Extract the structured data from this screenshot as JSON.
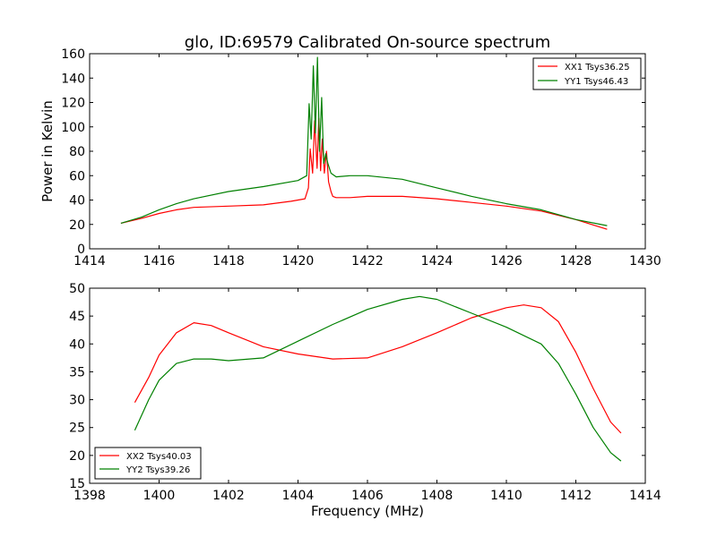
{
  "chart_data": [
    {
      "type": "line",
      "title": "glo, ID:69579 Calibrated On-source spectrum",
      "xlabel": "",
      "ylabel": "Power in Kelvin",
      "xlim": [
        1414,
        1430
      ],
      "ylim": [
        0,
        160
      ],
      "xticks": [
        "1414",
        "1416",
        "1418",
        "1420",
        "1422",
        "1424",
        "1426",
        "1428",
        "1430"
      ],
      "yticks": [
        "0",
        "20",
        "40",
        "60",
        "80",
        "100",
        "120",
        "140",
        "160"
      ],
      "legend_position": "top-right",
      "grid": false,
      "series": [
        {
          "name": "XX1 Tsys36.25",
          "color": "#ff0000",
          "x": [
            1414.9,
            1415.5,
            1416.0,
            1416.5,
            1417.0,
            1418.0,
            1419.0,
            1419.8,
            1420.2,
            1420.3,
            1420.35,
            1420.42,
            1420.48,
            1420.55,
            1420.6,
            1420.65,
            1420.7,
            1420.76,
            1420.82,
            1420.88,
            1420.95,
            1421.0,
            1421.1,
            1421.5,
            1422.0,
            1423.0,
            1424.0,
            1425.0,
            1426.0,
            1427.0,
            1428.0,
            1428.9
          ],
          "y": [
            21,
            25,
            29,
            32,
            34,
            35,
            36,
            39,
            41,
            50,
            82,
            62,
            105,
            66,
            107,
            64,
            90,
            62,
            80,
            55,
            47,
            43,
            42,
            42,
            43,
            43,
            41,
            38,
            35,
            31,
            24,
            16
          ]
        },
        {
          "name": "YY1 Tsys46.43",
          "color": "#008000",
          "x": [
            1414.9,
            1415.5,
            1416.0,
            1416.5,
            1417.0,
            1418.0,
            1419.0,
            1420.0,
            1420.25,
            1420.32,
            1420.38,
            1420.44,
            1420.5,
            1420.56,
            1420.62,
            1420.68,
            1420.74,
            1420.8,
            1420.86,
            1420.95,
            1421.1,
            1421.5,
            1422.0,
            1423.0,
            1424.0,
            1425.0,
            1426.0,
            1427.0,
            1428.0,
            1428.9
          ],
          "y": [
            21,
            26,
            32,
            37,
            41,
            47,
            51,
            56,
            60,
            119,
            90,
            150,
            95,
            157,
            80,
            124,
            70,
            78,
            70,
            62,
            59,
            60,
            60,
            57,
            50,
            43,
            37,
            32,
            24,
            19
          ]
        }
      ]
    },
    {
      "type": "line",
      "title": "",
      "xlabel": "Frequency (MHz)",
      "ylabel": "",
      "xlim": [
        1398,
        1414
      ],
      "ylim": [
        15,
        50
      ],
      "xticks": [
        "1398",
        "1400",
        "1402",
        "1404",
        "1406",
        "1408",
        "1410",
        "1412",
        "1414"
      ],
      "yticks": [
        "15",
        "20",
        "25",
        "30",
        "35",
        "40",
        "45",
        "50"
      ],
      "legend_position": "bottom-left",
      "grid": false,
      "series": [
        {
          "name": "XX2 Tsys40.03",
          "color": "#ff0000",
          "x": [
            1399.3,
            1399.7,
            1400.0,
            1400.5,
            1401.0,
            1401.5,
            1402.0,
            1403.0,
            1404.0,
            1405.0,
            1406.0,
            1407.0,
            1408.0,
            1409.0,
            1410.0,
            1410.5,
            1411.0,
            1411.5,
            1412.0,
            1412.5,
            1413.0,
            1413.3
          ],
          "y": [
            29.5,
            34,
            38,
            42,
            43.8,
            43.3,
            42,
            39.5,
            38.2,
            37.3,
            37.5,
            39.5,
            42,
            44.7,
            46.5,
            47,
            46.5,
            44,
            38.5,
            32,
            26,
            24
          ]
        },
        {
          "name": "YY2 Tsys39.26",
          "color": "#008000",
          "x": [
            1399.3,
            1399.7,
            1400.0,
            1400.5,
            1401.0,
            1401.5,
            1402.0,
            1403.0,
            1404.0,
            1405.0,
            1406.0,
            1407.0,
            1407.5,
            1408.0,
            1409.0,
            1410.0,
            1411.0,
            1411.5,
            1412.0,
            1412.5,
            1413.0,
            1413.3
          ],
          "y": [
            24.5,
            30,
            33.5,
            36.5,
            37.3,
            37.3,
            37,
            37.5,
            40.5,
            43.5,
            46.2,
            48,
            48.5,
            48,
            45.5,
            43,
            40,
            36.5,
            31,
            25,
            20.5,
            19
          ]
        }
      ]
    }
  ]
}
